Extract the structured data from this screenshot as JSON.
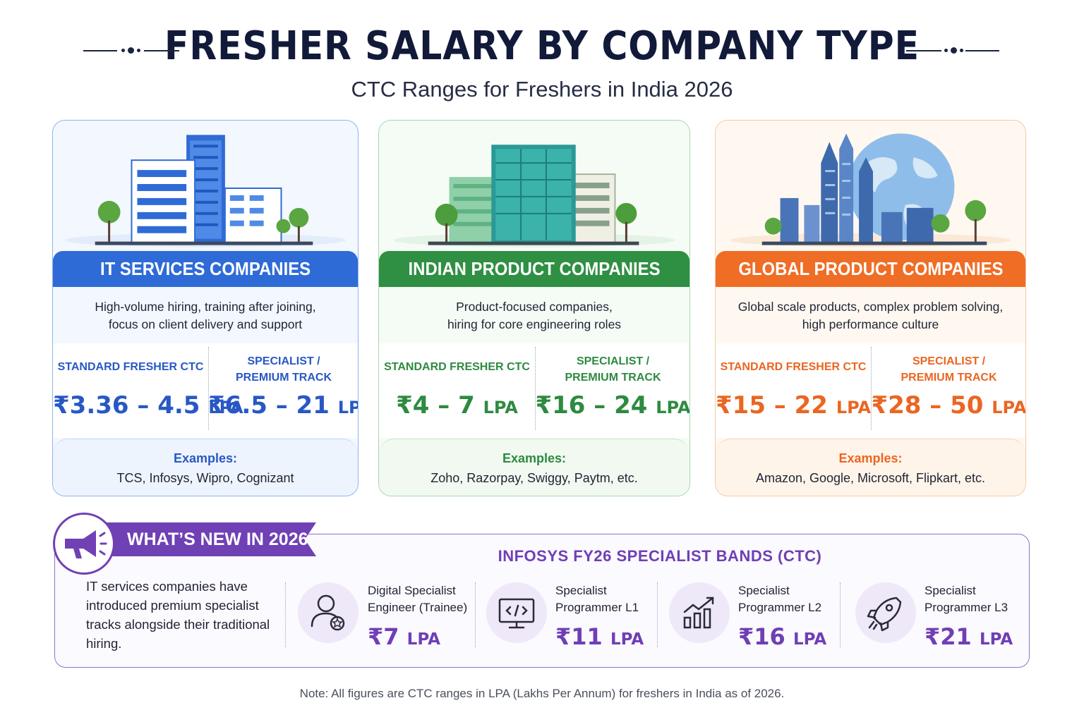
{
  "header": {
    "title": "FRESHER SALARY BY COMPANY TYPE",
    "subtitle": "CTC Ranges for Freshers in India 2026"
  },
  "cards": [
    {
      "band": "IT SERVICES COMPANIES",
      "desc_line1": "High-volume hiring, training after joining,",
      "desc_line2": "focus on client delivery and support",
      "standard_label": "STANDARD FRESHER CTC",
      "standard_value": "₹3.36 – 4.5",
      "premium_label1": "SPECIALIST /",
      "premium_label2": "PREMIUM TRACK",
      "premium_value": "₹6.5 – 21",
      "unit": "LPA",
      "examples_heading": "Examples:",
      "examples": "TCS, Infosys, Wipro, Cognizant",
      "accent": "#2f6bd6"
    },
    {
      "band": "INDIAN PRODUCT COMPANIES",
      "desc_line1": "Product-focused companies,",
      "desc_line2": "hiring for core engineering roles",
      "standard_label": "STANDARD FRESHER CTC",
      "standard_value": "₹4 – 7",
      "premium_label1": "SPECIALIST /",
      "premium_label2": "PREMIUM TRACK",
      "premium_value": "₹16 – 24",
      "unit": "LPA",
      "examples_heading": "Examples:",
      "examples": "Zoho, Razorpay, Swiggy, Paytm, etc.",
      "accent": "#2f8f43"
    },
    {
      "band": "GLOBAL PRODUCT COMPANIES",
      "desc_line1": "Global scale products, complex problem solving,",
      "desc_line2": "high performance culture",
      "standard_label": "STANDARD FRESHER CTC",
      "standard_value": "₹15 – 22",
      "premium_label1": "SPECIALIST /",
      "premium_label2": "PREMIUM TRACK",
      "premium_value": "₹28 – 50",
      "unit": "LPA",
      "examples_heading": "Examples:",
      "examples": "Amazon, Google, Microsoft, Flipkart, etc.",
      "accent": "#ef6d25"
    }
  ],
  "news": {
    "badge": "WHAT’S NEW IN 2026",
    "bands_title": "INFOSYS FY26 SPECIALIST BANDS (CTC)",
    "intro": "IT services companies have introduced premium specialist tracks alongside their traditional hiring.",
    "accent": "#6f3fb5",
    "items": [
      {
        "line1": "Digital Specialist",
        "line2": "Engineer (Trainee)",
        "value": "₹7",
        "unit": "LPA",
        "icon": "user-star-icon"
      },
      {
        "line1": "Specialist",
        "line2": "Programmer L1",
        "value": "₹11",
        "unit": "LPA",
        "icon": "monitor-code-icon"
      },
      {
        "line1": "Specialist",
        "line2": "Programmer L2",
        "value": "₹16",
        "unit": "LPA",
        "icon": "growth-chart-icon"
      },
      {
        "line1": "Specialist",
        "line2": "Programmer L3",
        "value": "₹21",
        "unit": "LPA",
        "icon": "rocket-icon"
      }
    ]
  },
  "note": "Note: All figures are CTC ranges in LPA (Lakhs Per Annum) for freshers in India as of 2026."
}
